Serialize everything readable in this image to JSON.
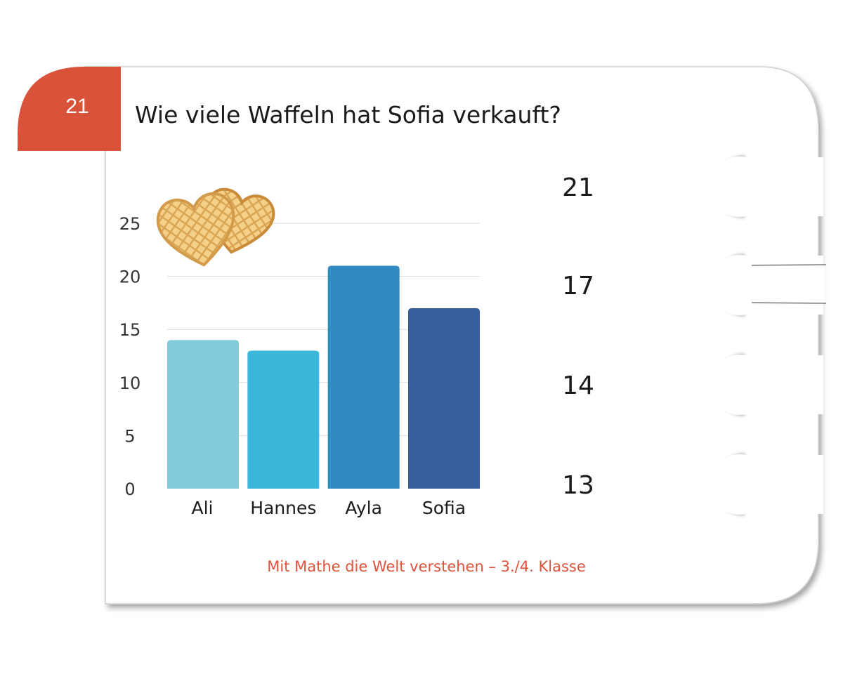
{
  "card": {
    "number": "21",
    "question": "Wie viele Waffeln hat Sofia verkauft?",
    "footer": "Mit Mathe die Welt verstehen  –  3./4. Klasse",
    "badge_color": "#d9533a",
    "footer_color": "#e0533a"
  },
  "answers": [
    {
      "label": "21"
    },
    {
      "label": "17"
    },
    {
      "label": "14"
    },
    {
      "label": "13"
    }
  ],
  "chart_data": {
    "type": "bar",
    "categories": [
      "Ali",
      "Hannes",
      "Ayla",
      "Sofia"
    ],
    "values": [
      14,
      13,
      21,
      17
    ],
    "colors": [
      "#82cbdb",
      "#3ab8db",
      "#318bc1",
      "#365e9c"
    ],
    "yticks": [
      0,
      5,
      10,
      15,
      20,
      25
    ],
    "ylim": [
      0,
      25
    ],
    "grid": true
  },
  "illustration": {
    "icon": "waffle-hearts-icon"
  }
}
